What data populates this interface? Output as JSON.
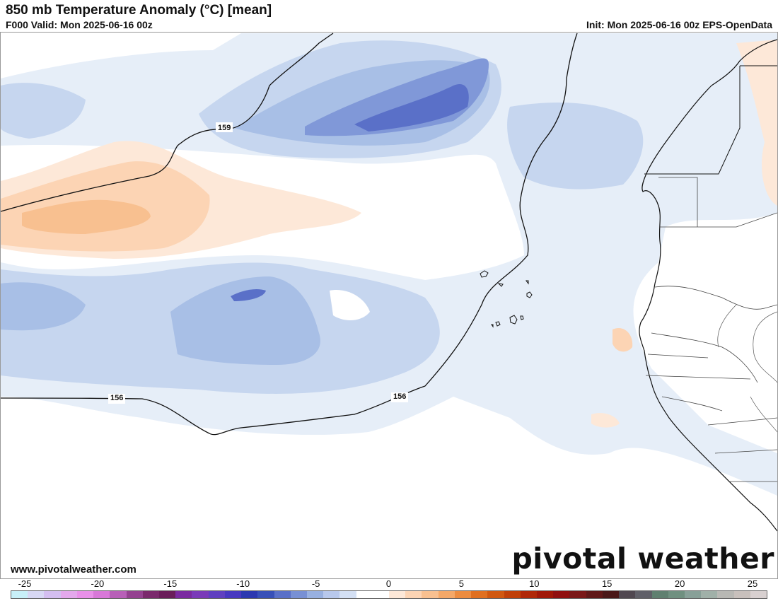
{
  "header": {
    "title": "850 mb Temperature Anomaly (°C) [mean]",
    "valid": "F000 Valid: Mon 2025-06-16 00z",
    "init": "Init: Mon 2025-06-16 00z EPS-OpenData"
  },
  "map": {
    "contour_labels": [
      "159",
      "156",
      "156"
    ]
  },
  "footer": {
    "website": "www.pivotalweather.com",
    "brand": "pivotal weather"
  },
  "colorbar": {
    "ticks": [
      "-25",
      "-20",
      "-15",
      "-10",
      "-5",
      "0",
      "5",
      "10",
      "15",
      "20",
      "25"
    ],
    "colors": [
      "#c8f0f8",
      "#d8d8f4",
      "#d4bef0",
      "#e4a8ec",
      "#e890e8",
      "#d878d8",
      "#b860b8",
      "#944290",
      "#7a2a6c",
      "#6a1e5a",
      "#7a2aa0",
      "#7a3ab8",
      "#6040c0",
      "#4838c0",
      "#2c38b0",
      "#3850b8",
      "#5a70c8",
      "#7890d4",
      "#98b0e0",
      "#b8c8ec",
      "#d4e0f4",
      "#ffffff",
      "#ffffff",
      "#fde8d8",
      "#fcd4b4",
      "#f8c090",
      "#f4a868",
      "#ec8c40",
      "#e07020",
      "#d05810",
      "#c04008",
      "#b02808",
      "#a01808",
      "#901010",
      "#7a1818",
      "#601818",
      "#4a1818",
      "#504850",
      "#606068",
      "#608070",
      "#709080",
      "#88a098",
      "#a0b0a8",
      "#b8b8b4",
      "#c8c0bc",
      "#d8d0d0"
    ]
  }
}
